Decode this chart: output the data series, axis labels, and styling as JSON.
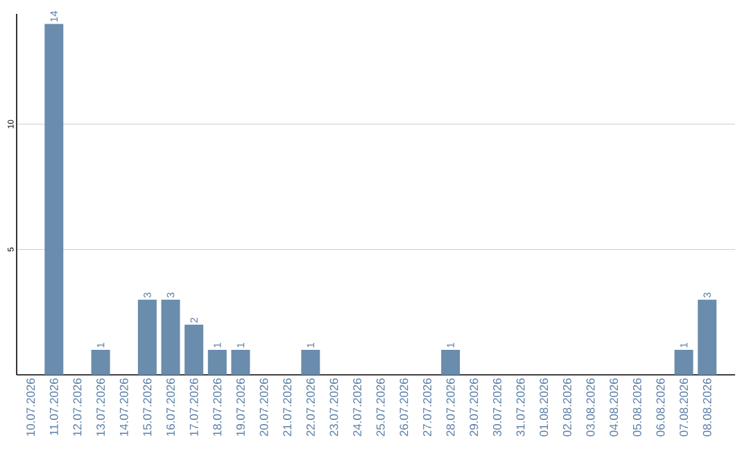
{
  "chart_data": {
    "type": "bar",
    "categories": [
      "10.07.2026",
      "11.07.2026",
      "12.07.2026",
      "13.07.2026",
      "14.07.2026",
      "15.07.2026",
      "16.07.2026",
      "17.07.2026",
      "18.07.2026",
      "19.07.2026",
      "20.07.2026",
      "21.07.2026",
      "22.07.2026",
      "23.07.2026",
      "24.07.2026",
      "25.07.2026",
      "26.07.2026",
      "27.07.2026",
      "28.07.2026",
      "29.07.2026",
      "30.07.2026",
      "31.07.2026",
      "01.08.2026",
      "02.08.2026",
      "03.08.2026",
      "04.08.2026",
      "05.08.2026",
      "06.08.2026",
      "07.08.2026",
      "08.08.2026"
    ],
    "values": [
      0,
      14,
      0,
      1,
      0,
      3,
      3,
      2,
      1,
      1,
      0,
      0,
      1,
      0,
      0,
      0,
      0,
      0,
      1,
      0,
      0,
      0,
      0,
      0,
      0,
      0,
      0,
      0,
      1,
      3
    ],
    "value_labels": [
      null,
      "14",
      null,
      "1",
      null,
      "3",
      "3",
      "2",
      "1",
      "1",
      null,
      null,
      "1",
      null,
      null,
      null,
      null,
      null,
      "1",
      null,
      null,
      null,
      null,
      null,
      null,
      null,
      null,
      null,
      "1",
      "3"
    ],
    "color": "#6a8cad",
    "ylim": [
      0,
      14.4
    ],
    "yticks": [
      5,
      10
    ],
    "grid": "y"
  }
}
